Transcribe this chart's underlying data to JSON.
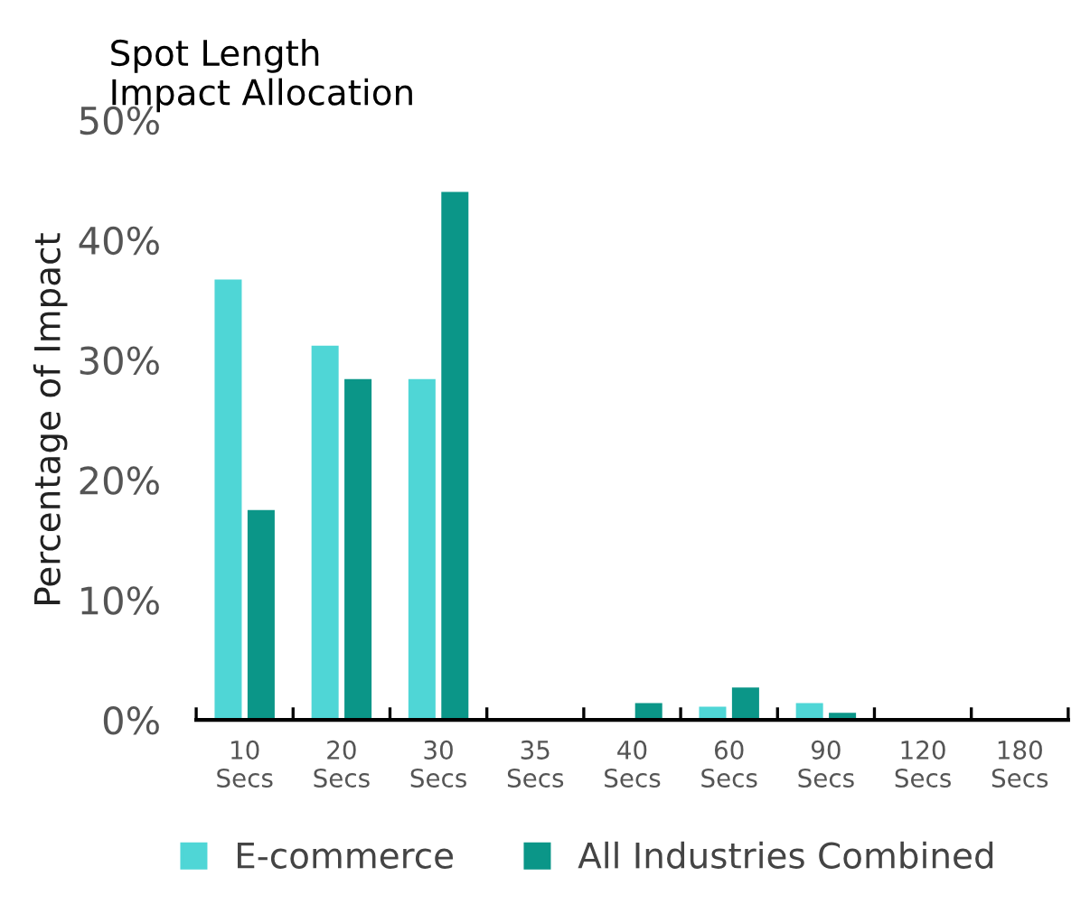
{
  "chart_data": {
    "type": "bar",
    "title": "Spot Length\nImpact Allocation",
    "ylabel": "Percentage of Impact",
    "categories": [
      "10\nSecs",
      "20\nSecs",
      "30\nSecs",
      "35\nSecs",
      "40\nSecs",
      "60\nSecs",
      "90\nSecs",
      "120\nSecs",
      "180\nSecs"
    ],
    "series": [
      {
        "name": "E-commerce",
        "color": "#4fd6d6",
        "values": [
          36.7,
          31.2,
          28.4,
          0,
          null,
          1.1,
          1.4,
          0,
          null
        ]
      },
      {
        "name": "All Industries Combined",
        "color": "#0b9688",
        "values": [
          17.5,
          28.4,
          44.0,
          0,
          1.4,
          2.7,
          0.6,
          0,
          0
        ]
      }
    ],
    "ylim": [
      0,
      50
    ],
    "yticks": [
      {
        "value": 0,
        "label": "0%"
      },
      {
        "value": 10,
        "label": "10%"
      },
      {
        "value": 20,
        "label": "20%"
      },
      {
        "value": 30,
        "label": "30%"
      },
      {
        "value": 40,
        "label": "40%"
      },
      {
        "value": 50,
        "label": "50%"
      }
    ],
    "grid": false,
    "legend": "bottom"
  }
}
